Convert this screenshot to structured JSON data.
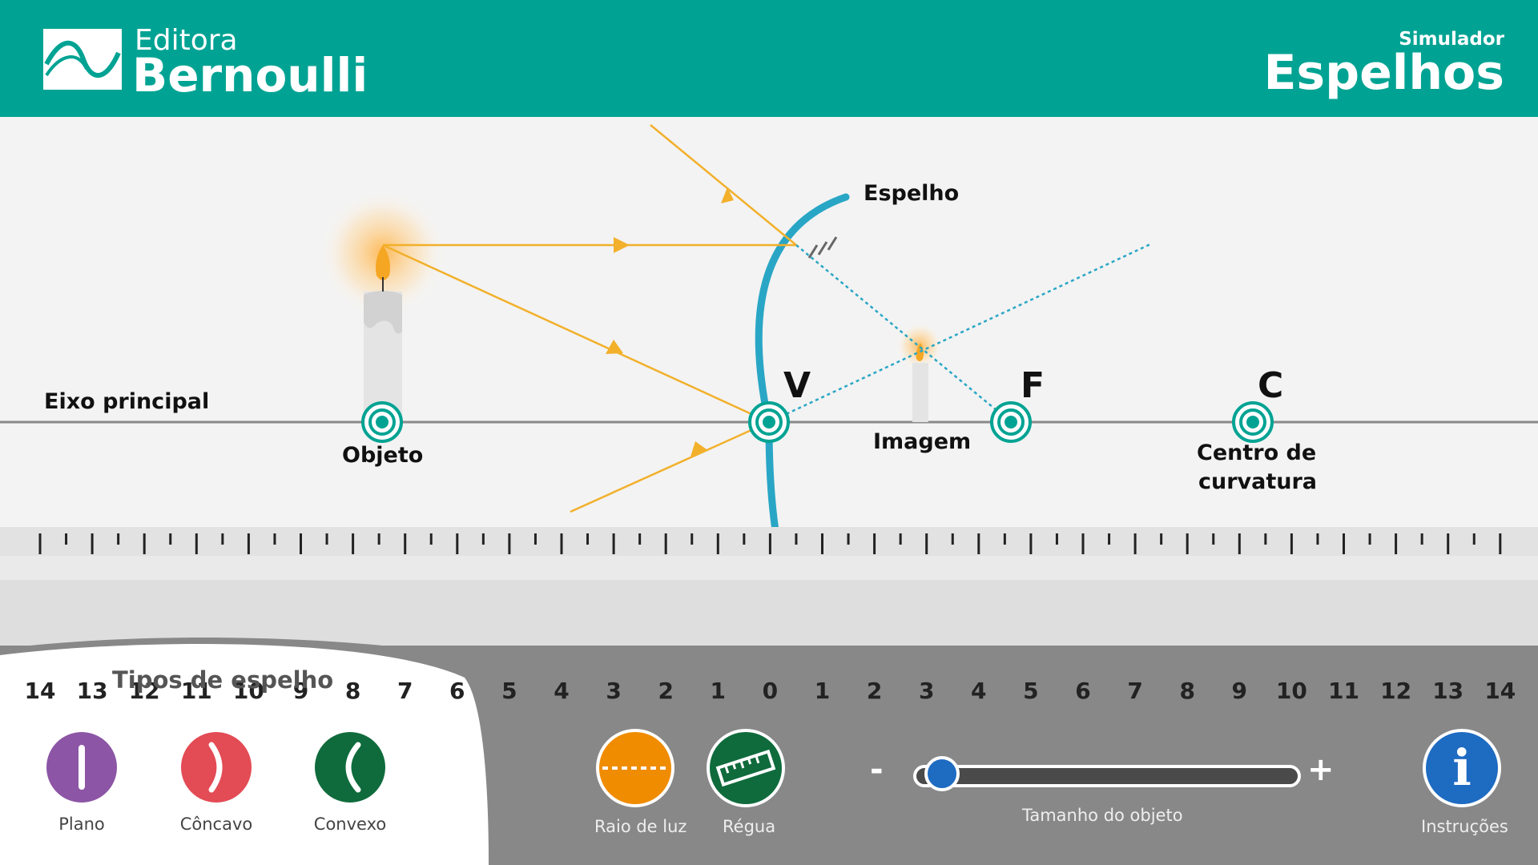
{
  "header": {
    "brand_small": "Editora",
    "brand_big": "Bernoulli",
    "subtitle": "Simulador",
    "title": "Espelhos",
    "colors": {
      "teal": "#00a393",
      "mirror": "#29a6c5",
      "ray": "#f2b02b",
      "marker": "#00a393"
    }
  },
  "scene": {
    "mirror_label": "Espelho",
    "axis_label": "Eixo principal",
    "object_label": "Objeto",
    "image_label": "Imagem",
    "vertex_point": "V",
    "focus_point": "F",
    "center_point": "C",
    "center_label_line1": "Centro de",
    "center_label_line2": "curvatura"
  },
  "ruler": {
    "labels": [
      "14",
      "13",
      "12",
      "11",
      "10",
      "9",
      "8",
      "7",
      "6",
      "5",
      "4",
      "3",
      "2",
      "1",
      "0",
      "1",
      "2",
      "3",
      "4",
      "5",
      "6",
      "7",
      "8",
      "9",
      "10",
      "11",
      "12",
      "13",
      "14"
    ]
  },
  "mirror_types": {
    "title": "Tipos de espelho",
    "items": [
      {
        "label": "Plano",
        "icon": "flat-mirror-icon",
        "color": "#8c55a5"
      },
      {
        "label": "Côncavo",
        "icon": "concave-mirror-icon",
        "color": "#e34b55"
      },
      {
        "label": "Convexo",
        "icon": "convex-mirror-icon",
        "color": "#0f6b3c"
      }
    ]
  },
  "controls": {
    "light_ray_label": "Raio de luz",
    "ruler_label": "Régua",
    "size_label": "Tamanho do objeto",
    "size_minus": "-",
    "size_plus": "+",
    "instructions_label": "Instruções",
    "instructions_glyph": "i",
    "object_size_level": 0.04
  }
}
